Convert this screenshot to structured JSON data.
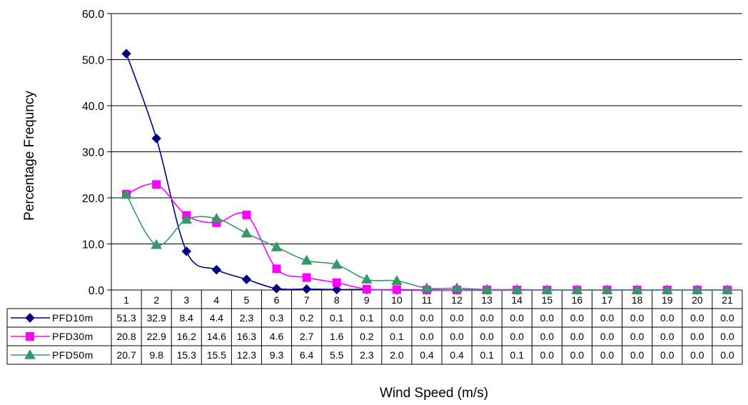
{
  "chart_data": {
    "type": "line",
    "title": "",
    "xlabel": "Wind Speed (m/s)",
    "ylabel": "Percentage Frequncy",
    "ylim": [
      0,
      60
    ],
    "yticks": [
      "0.0",
      "10.0",
      "20.0",
      "30.0",
      "40.0",
      "50.0",
      "60.0"
    ],
    "grid": true,
    "legend": "data-table-left",
    "categories": [
      "1",
      "2",
      "3",
      "4",
      "5",
      "6",
      "7",
      "8",
      "9",
      "10",
      "11",
      "12",
      "13",
      "14",
      "15",
      "16",
      "17",
      "18",
      "19",
      "20",
      "21"
    ],
    "series": [
      {
        "name": "PFD10m",
        "color": "#000080",
        "marker": "diamond",
        "values": [
          51.3,
          32.9,
          8.4,
          4.4,
          2.3,
          0.3,
          0.2,
          0.1,
          0.1,
          0.0,
          0.0,
          0.0,
          0.0,
          0.0,
          0.0,
          0.0,
          0.0,
          0.0,
          0.0,
          0.0,
          0.0
        ],
        "labels": [
          "51.3",
          "32.9",
          "8.4",
          "4.4",
          "2.3",
          "0.3",
          "0.2",
          "0.1",
          "0.1",
          "0.0",
          "0.0",
          "0.0",
          "0.0",
          "0.0",
          "0.0",
          "0.0",
          "0.0",
          "0.0",
          "0.0",
          "0.0",
          "0.0"
        ]
      },
      {
        "name": "PFD30m",
        "color": "#ff00ff",
        "marker": "square",
        "values": [
          20.8,
          22.9,
          16.2,
          14.6,
          16.3,
          4.6,
          2.7,
          1.6,
          0.2,
          0.1,
          0.0,
          0.0,
          0.0,
          0.0,
          0.0,
          0.0,
          0.0,
          0.0,
          0.0,
          0.0,
          0.0
        ],
        "labels": [
          "20.8",
          "22.9",
          "16.2",
          "14.6",
          "16.3",
          "4.6",
          "2.7",
          "1.6",
          "0.2",
          "0.1",
          "0.0",
          "0.0",
          "0.0",
          "0.0",
          "0.0",
          "0.0",
          "0.0",
          "0.0",
          "0.0",
          "0.0",
          "0.0"
        ]
      },
      {
        "name": "PFD50m",
        "color": "#339966",
        "marker": "triangle",
        "values": [
          20.7,
          9.8,
          15.3,
          15.5,
          12.3,
          9.3,
          6.4,
          5.5,
          2.3,
          2.0,
          0.4,
          0.4,
          0.1,
          0.1,
          0.0,
          0.0,
          0.0,
          0.0,
          0.0,
          0.0,
          0.0
        ],
        "labels": [
          "20.7",
          "9.8",
          "15.3",
          "15.5",
          "12.3",
          "9.3",
          "6.4",
          "5.5",
          "2.3",
          "2.0",
          "0.4",
          "0.4",
          "0.1",
          "0.1",
          "0.0",
          "0.0",
          "0.0",
          "0.0",
          "0.0",
          "0.0",
          "0.0"
        ]
      }
    ]
  }
}
